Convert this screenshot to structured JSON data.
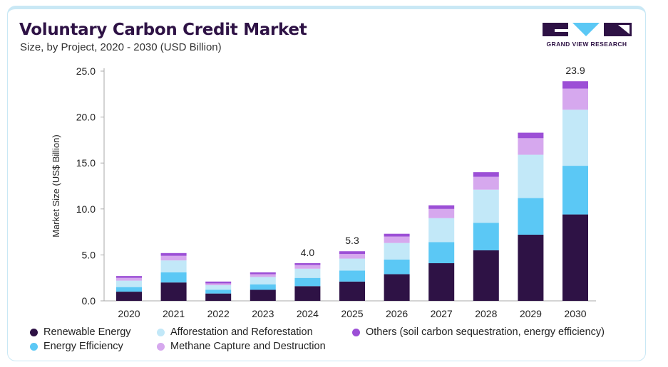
{
  "header": {
    "title": "Voluntary Carbon Credit Market",
    "subtitle": "Size, by Project, 2020 - 2030 (USD Billion)"
  },
  "logo": {
    "text": "GRAND VIEW RESEARCH",
    "color": "#2e1245",
    "accent": "#5bc8f5"
  },
  "chart_data": {
    "type": "bar",
    "stacked": true,
    "categories": [
      "2020",
      "2021",
      "2022",
      "2023",
      "2024",
      "2025",
      "2026",
      "2027",
      "2028",
      "2029",
      "2030"
    ],
    "ylabel": "Market Size (US$ Billion)",
    "xlabel": "",
    "ylim": [
      0,
      25
    ],
    "yticks": [
      "0.0",
      "5.0",
      "10.0",
      "15.0",
      "20.0",
      "25.0"
    ],
    "grid": false,
    "legend_position": "bottom",
    "series": [
      {
        "name": "Renewable Energy",
        "color": "#2e1245",
        "values": [
          1.0,
          2.0,
          0.8,
          1.2,
          1.6,
          2.1,
          2.9,
          4.1,
          5.5,
          7.2,
          9.4
        ]
      },
      {
        "name": "Energy Efficiency",
        "color": "#5bc8f5",
        "values": [
          0.5,
          1.1,
          0.4,
          0.6,
          0.9,
          1.2,
          1.6,
          2.3,
          3.0,
          4.0,
          5.3
        ]
      },
      {
        "name": "Afforestation and Reforestation",
        "color": "#c2e8f8",
        "values": [
          0.7,
          1.3,
          0.5,
          0.8,
          1.0,
          1.3,
          1.8,
          2.6,
          3.6,
          4.7,
          6.1
        ]
      },
      {
        "name": "Methane Capture and Destruction",
        "color": "#d6a8ee",
        "values": [
          0.3,
          0.5,
          0.2,
          0.3,
          0.4,
          0.5,
          0.7,
          1.0,
          1.4,
          1.8,
          2.3
        ]
      },
      {
        "name": "Others (soil carbon sequestration, energy efficiency)",
        "color": "#9c4fd6",
        "values": [
          0.2,
          0.3,
          0.2,
          0.2,
          0.2,
          0.3,
          0.3,
          0.4,
          0.5,
          0.6,
          0.8
        ]
      }
    ],
    "annotations": [
      {
        "category": "2024",
        "label": "4.0"
      },
      {
        "category": "2025",
        "label": "5.3"
      },
      {
        "category": "2030",
        "label": "23.9"
      }
    ]
  }
}
